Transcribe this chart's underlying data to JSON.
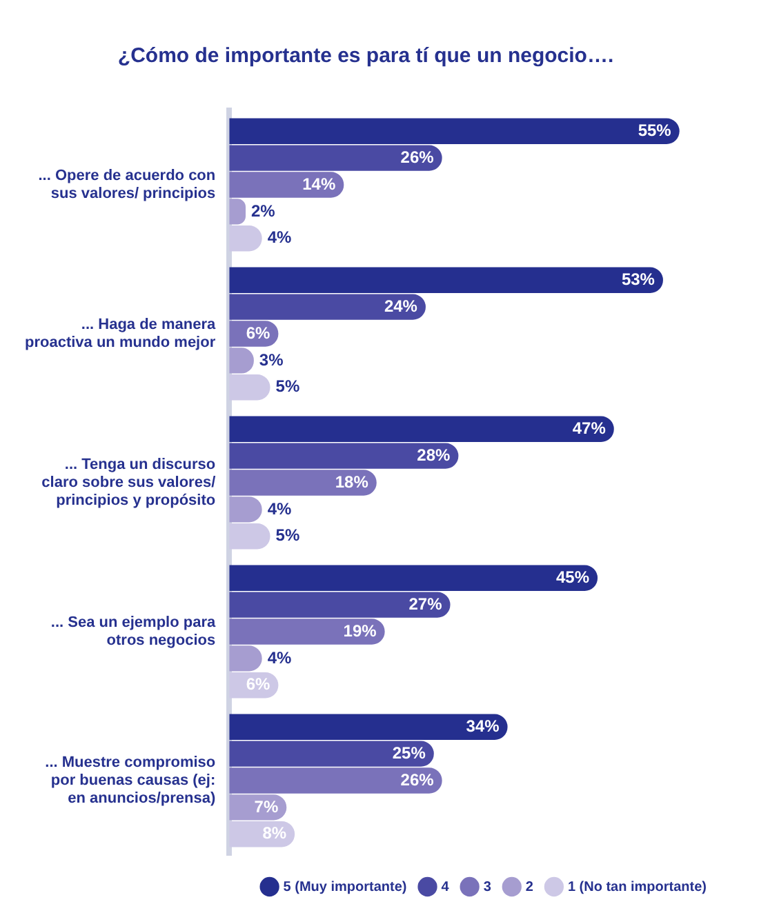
{
  "chart_data": {
    "type": "bar",
    "orientation": "horizontal",
    "title": "¿Cómo de importante es para tí que un negocio….",
    "categories": [
      "... Opere de acuerdo con sus valores/ principios",
      "... Haga de manera proactiva un mundo mejor",
      "... Tenga un discurso claro sobre sus valores/ principios y propósito",
      "... Sea un ejemplo para otros negocios",
      "... Muestre compromiso por buenas causas (ej: en anuncios/prensa)"
    ],
    "series": [
      {
        "name": "5 (Muy importante)",
        "color": "#252f8f",
        "values": [
          55,
          53,
          47,
          45,
          34
        ],
        "value_labels": [
          "55%",
          "53%",
          "47%",
          "45%",
          "34%"
        ]
      },
      {
        "name": "4",
        "color": "#4a4aa3",
        "values": [
          26,
          24,
          28,
          27,
          25
        ],
        "value_labels": [
          "26%",
          "24%",
          "28%",
          "27%",
          "25%"
        ]
      },
      {
        "name": "3",
        "color": "#7a72ba",
        "values": [
          14,
          6,
          18,
          19,
          26
        ],
        "value_labels": [
          "14%",
          "6%",
          "18%",
          "19%",
          "26%"
        ]
      },
      {
        "name": "2",
        "color": "#a69dd0",
        "values": [
          2,
          3,
          4,
          4,
          7
        ],
        "value_labels": [
          "2%",
          "3%",
          "4%",
          "4%",
          "7%"
        ]
      },
      {
        "name": "1 (No tan importante)",
        "color": "#cdc8e6",
        "values": [
          4,
          5,
          5,
          6,
          8
        ],
        "value_labels": [
          "4%",
          "5%",
          "5%",
          "6%",
          "8%"
        ]
      }
    ],
    "tick_labels": "y",
    "grid": false,
    "legend": "bottom"
  }
}
